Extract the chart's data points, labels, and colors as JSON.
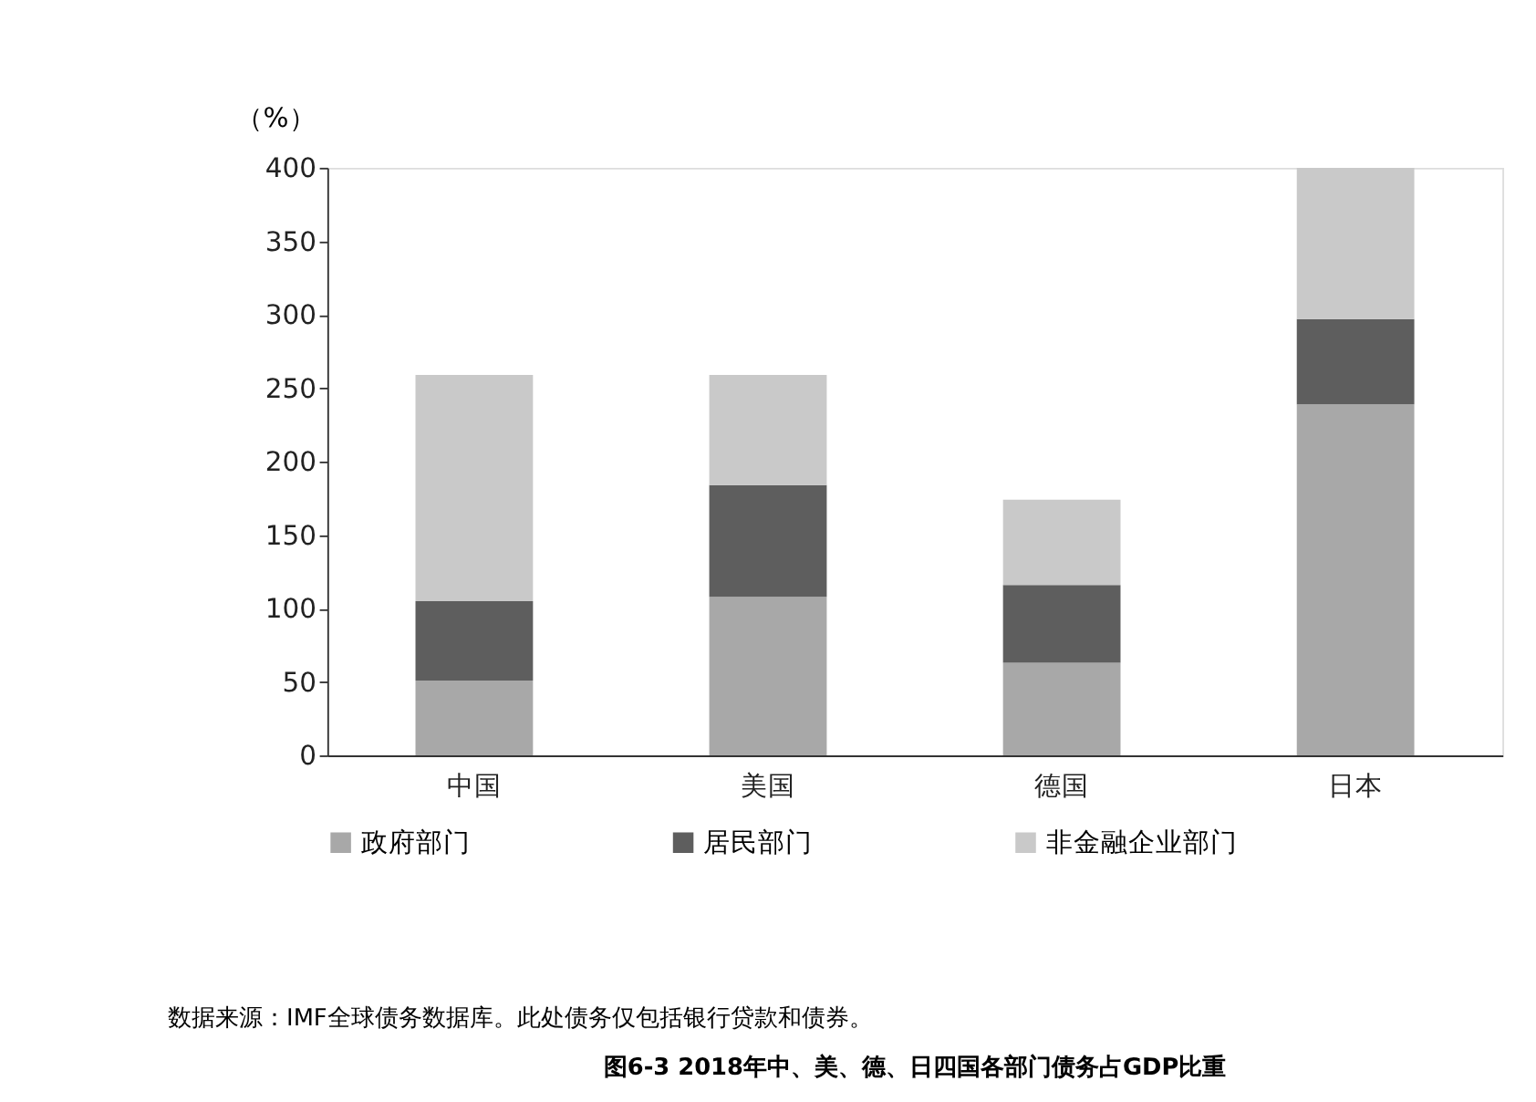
{
  "chart_data": {
    "type": "bar",
    "stacked": true,
    "title": "图6-3  2018年中、美、德、日四国各部门债务占GDP比重",
    "ylabel": "（%）",
    "categories": [
      "中国",
      "美国",
      "德国",
      "日本"
    ],
    "series": [
      {
        "name": "政府部门",
        "color": "#a8a8a8",
        "values": [
          51,
          108,
          63,
          239
        ]
      },
      {
        "name": "居民部门",
        "color": "#5e5e5e",
        "values": [
          54,
          76,
          53,
          58
        ]
      },
      {
        "name": "非金融企业部门",
        "color": "#c9c9c9",
        "values": [
          154,
          75,
          58,
          103
        ]
      }
    ],
    "ylim": [
      0,
      400
    ],
    "yticks": [
      0,
      50,
      100,
      150,
      200,
      250,
      300,
      350,
      400
    ],
    "grid": false,
    "legend": "bottom",
    "annotations": [
      "数据来源：IMF全球债务数据库。此处债务仅包括银行贷款和债券。"
    ]
  }
}
